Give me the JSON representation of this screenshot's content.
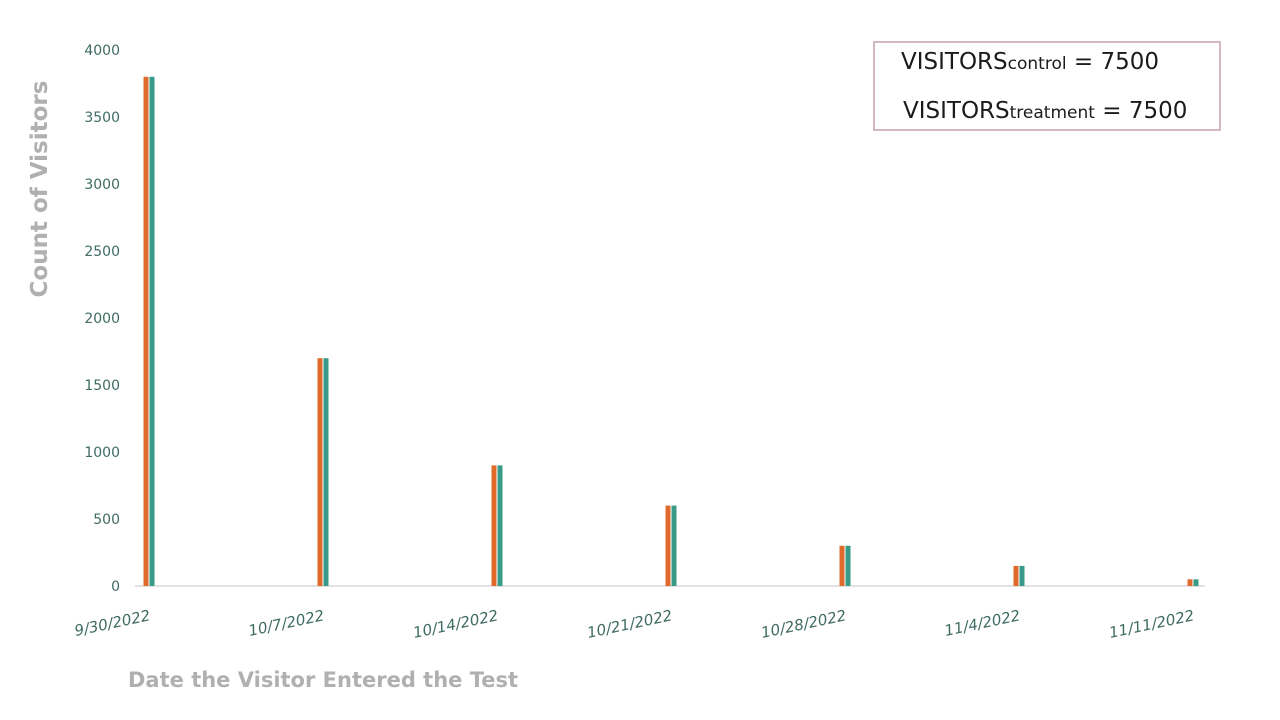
{
  "chart_data": {
    "type": "bar",
    "categories": [
      "9/30/2022",
      "10/7/2022",
      "10/14/2022",
      "10/21/2022",
      "10/28/2022",
      "11/4/2022",
      "11/11/2022"
    ],
    "series": [
      {
        "values": [
          3800,
          1700,
          900,
          600,
          300,
          150,
          50
        ],
        "color": "#e06a2c"
      },
      {
        "values": [
          3800,
          1700,
          900,
          600,
          300,
          150,
          50
        ],
        "color": "#3a9a88"
      }
    ],
    "xlabel": "Date the Visitor Entered the Test",
    "ylabel": "Count of Visitors",
    "ylim": [
      0,
      4000
    ],
    "yticks": [
      0,
      500,
      1000,
      1500,
      2000,
      2500,
      3000,
      3500,
      4000
    ],
    "grid": false
  },
  "annotation": {
    "line1_main": "VISITORS",
    "line1_sub": "control",
    "line1_value": " = 7500",
    "line2_main": "VISITORS",
    "line2_sub": "treatment",
    "line2_value": " = 7500"
  }
}
